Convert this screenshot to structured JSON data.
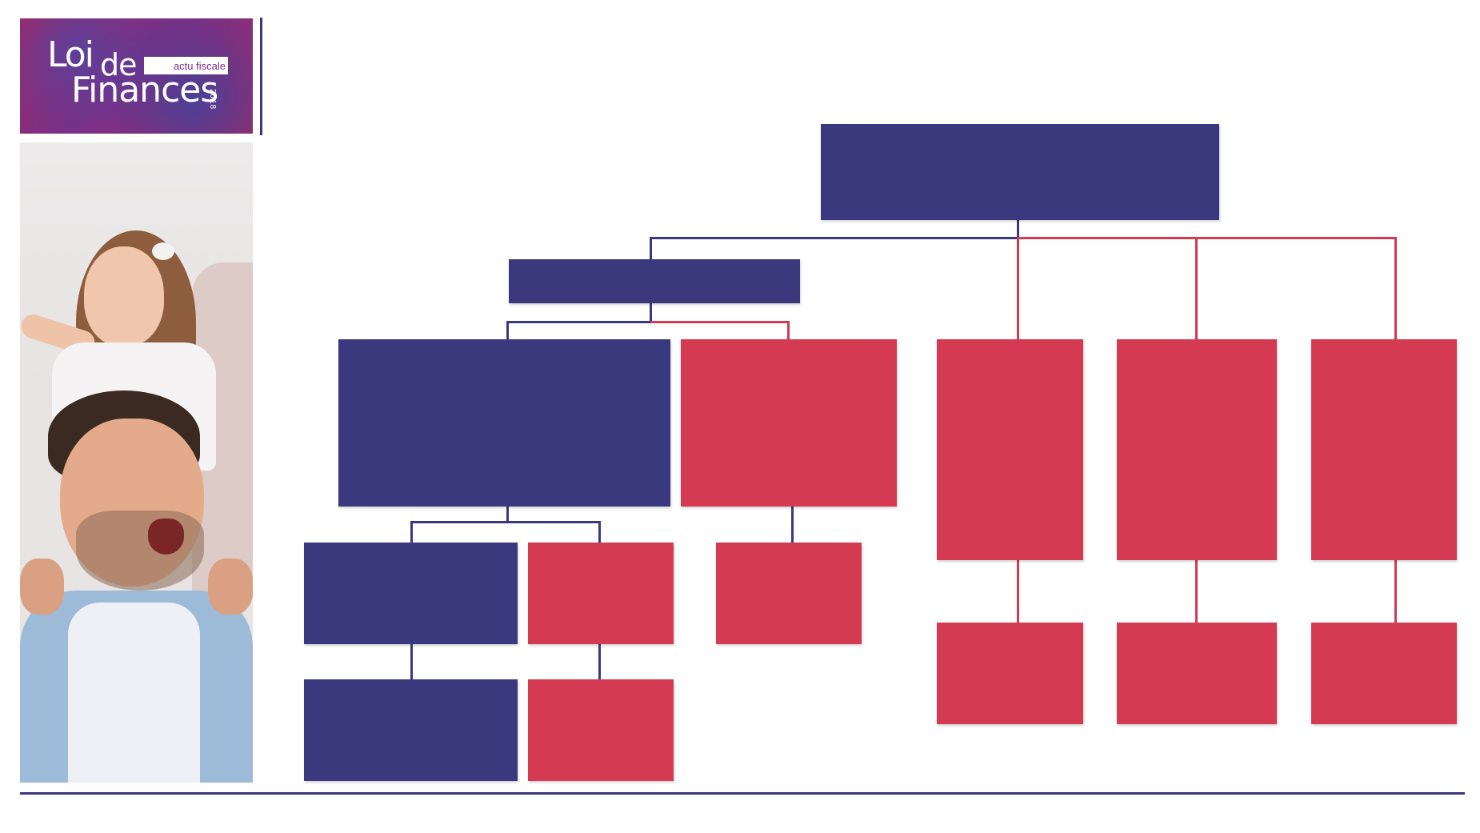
{
  "logo": {
    "word_1": "Loi",
    "word_2": "de",
    "word_3": "Finances",
    "tag": "actu fiscale",
    "year": "2018"
  },
  "colors": {
    "primary": "#3b397d",
    "accent": "#d43a51"
  },
  "org_chart": {
    "root": {
      "color": "blue",
      "label": ""
    },
    "children": [
      {
        "color": "blue",
        "label": "",
        "children": [
          {
            "color": "blue",
            "label": "",
            "children": [
              {
                "color": "blue",
                "label": "",
                "children": [
                  {
                    "color": "blue",
                    "label": ""
                  }
                ]
              },
              {
                "color": "red",
                "label": "",
                "children": [
                  {
                    "color": "red",
                    "label": ""
                  }
                ]
              }
            ]
          },
          {
            "color": "red",
            "label": "",
            "children": [
              {
                "color": "red",
                "label": ""
              }
            ]
          }
        ]
      },
      {
        "color": "red",
        "label": "",
        "children": [
          {
            "color": "red",
            "label": ""
          }
        ]
      },
      {
        "color": "red",
        "label": "",
        "children": [
          {
            "color": "red",
            "label": ""
          }
        ]
      },
      {
        "color": "red",
        "label": "",
        "children": [
          {
            "color": "red",
            "label": ""
          }
        ]
      }
    ]
  }
}
